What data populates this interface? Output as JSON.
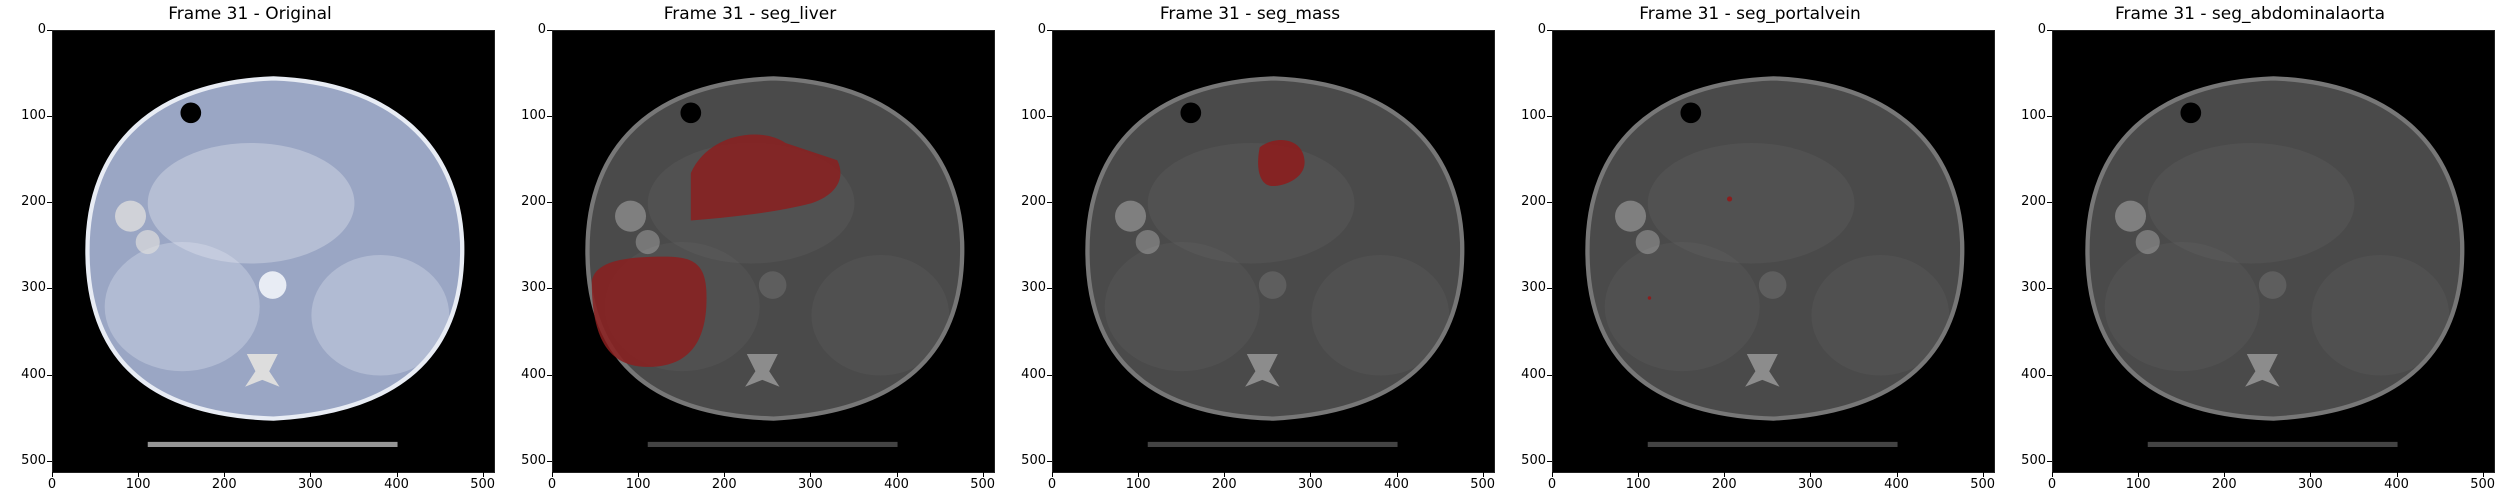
{
  "panels": [
    {
      "title": "Frame 31 - Original",
      "overlay": "none"
    },
    {
      "title": "Frame 31 - seg_liver",
      "overlay": "liver"
    },
    {
      "title": "Frame 31 - seg_mass",
      "overlay": "mass"
    },
    {
      "title": "Frame 31 - seg_portalvein",
      "overlay": "portalvein"
    },
    {
      "title": "Frame 31 - seg_abdominalaorta",
      "overlay": "none"
    }
  ],
  "axes": {
    "x_ticks": [
      "0",
      "100",
      "200",
      "300",
      "400",
      "500"
    ],
    "y_ticks": [
      "0",
      "100",
      "200",
      "300",
      "400",
      "500"
    ],
    "range": [
      0,
      512
    ]
  },
  "colors": {
    "overlay": "#8b1e1e",
    "original_tint": "#9aa6c4",
    "dimmed_tint": "#4a4a4a"
  }
}
